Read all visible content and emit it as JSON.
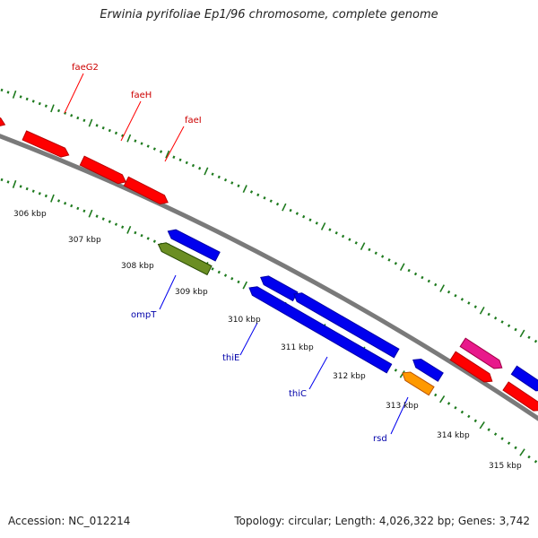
{
  "title": "Erwinia pyrifoliae Ep1/96 chromosome, complete genome",
  "footer": {
    "accession": "Accession: NC_012214",
    "topology": "Topology: circular; Length: 4,026,322 bp; Genes: 3,742"
  },
  "colors": {
    "background": "#ffffff",
    "backbone": "#8a8a8a",
    "ruler_dots": "#1e7a1e",
    "forward_gene": "#ff0000",
    "reverse_gene": "#0000ee",
    "olive_gene": "#6b8e23",
    "orange_gene": "#ff9900",
    "magenta_gene": "#e8198b",
    "forward_label": "#cc0000",
    "reverse_label": "#0000aa"
  },
  "tick_labels": [
    "306 kbp",
    "307 kbp",
    "308 kbp",
    "309 kbp",
    "310 kbp",
    "311 kbp",
    "312 kbp",
    "313 kbp",
    "314 kbp",
    "315 kbp"
  ],
  "gene_labels": {
    "forward": [
      "faeG2",
      "faeH",
      "faeI"
    ],
    "reverse": [
      "ompT",
      "thiE",
      "thiC",
      "rsd"
    ]
  }
}
